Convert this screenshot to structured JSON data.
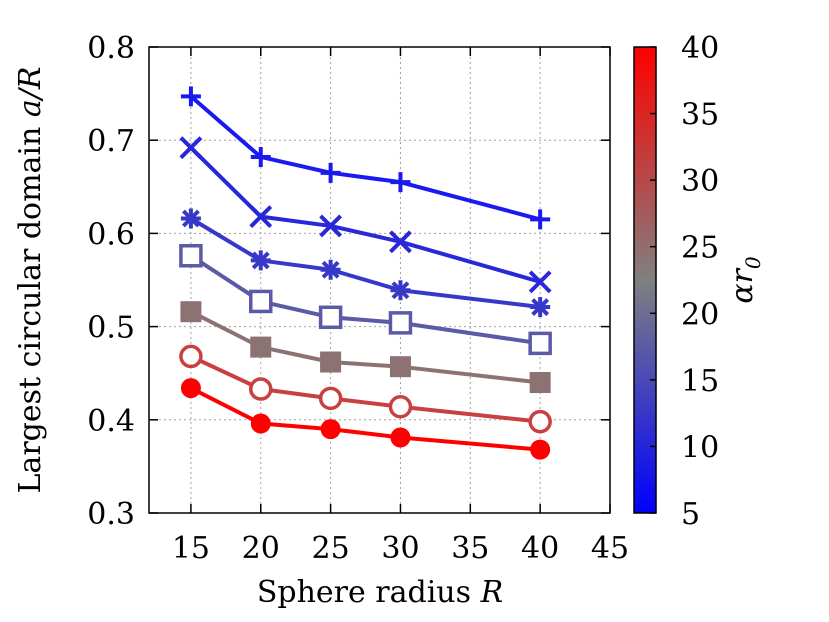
{
  "chart_data": {
    "type": "line",
    "xlabel": "Sphere radius",
    "xlabel_symbol": "R",
    "ylabel": "Largest circular domain",
    "ylabel_symbol": "a/R",
    "xlim": [
      12,
      45
    ],
    "ylim": [
      0.3,
      0.8
    ],
    "xticks": [
      15,
      20,
      25,
      30,
      35,
      40,
      45
    ],
    "yticks": [
      "0.3",
      "0.4",
      "0.5",
      "0.6",
      "0.7",
      "0.8"
    ],
    "grid": true,
    "colorbar": {
      "label": "αr",
      "label_subscript": "0",
      "range": [
        5,
        40
      ],
      "ticks": [
        5,
        10,
        15,
        20,
        25,
        30,
        35,
        40
      ],
      "colors": [
        "#0000ff",
        "#808080",
        "#ff0000"
      ]
    },
    "series": [
      {
        "marker": "plus",
        "color": "#1a1af0",
        "x": [
          15,
          20,
          25,
          30,
          40
        ],
        "y": [
          0.747,
          0.682,
          0.665,
          0.655,
          0.615
        ]
      },
      {
        "marker": "cross",
        "color": "#2828d8",
        "x": [
          15,
          20,
          25,
          30,
          40
        ],
        "y": [
          0.692,
          0.618,
          0.608,
          0.591,
          0.548
        ]
      },
      {
        "marker": "asterisk",
        "color": "#3838c8",
        "x": [
          15,
          20,
          25,
          30,
          40
        ],
        "y": [
          0.616,
          0.571,
          0.561,
          0.539,
          0.521
        ]
      },
      {
        "marker": "open-square",
        "color": "#5a5aa6",
        "x": [
          15,
          20,
          25,
          30,
          40
        ],
        "y": [
          0.576,
          0.527,
          0.51,
          0.504,
          0.482
        ]
      },
      {
        "marker": "filled-square",
        "color": "#8c7272",
        "x": [
          15,
          20,
          25,
          30,
          40
        ],
        "y": [
          0.516,
          0.478,
          0.462,
          0.457,
          0.44
        ]
      },
      {
        "marker": "open-circle",
        "color": "#c84040",
        "x": [
          15,
          20,
          25,
          30,
          40
        ],
        "y": [
          0.468,
          0.433,
          0.423,
          0.414,
          0.398
        ]
      },
      {
        "marker": "filled-circle",
        "color": "#ff0000",
        "x": [
          15,
          20,
          25,
          30,
          40
        ],
        "y": [
          0.434,
          0.396,
          0.39,
          0.381,
          0.368
        ]
      }
    ]
  }
}
